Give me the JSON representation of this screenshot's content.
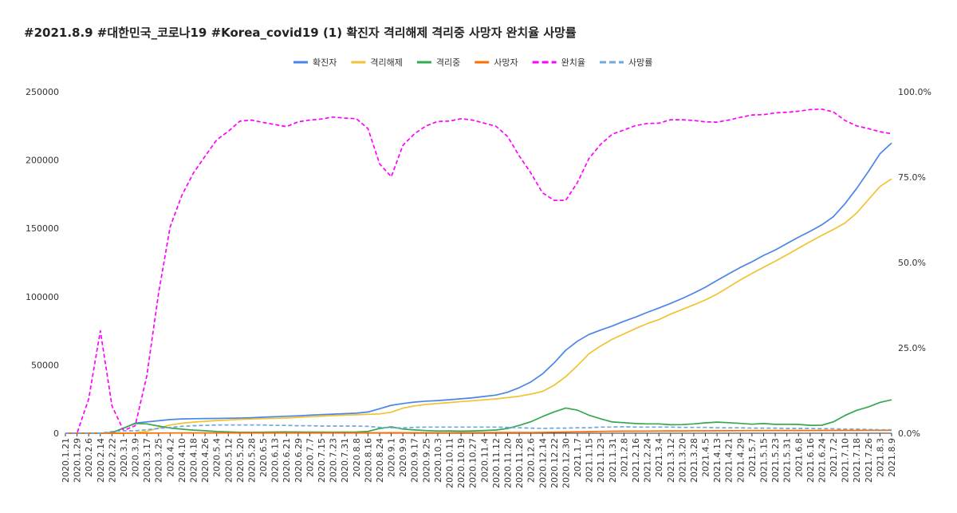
{
  "chart_data": {
    "type": "line",
    "title": "#2021.8.9 #대한민국_코로나19 #Korea_covid19 (1) 확진자 격리해제 격리중 사망자 완치율 사망률",
    "xlabel": "",
    "ylabel": "",
    "ylim": [
      0,
      250000
    ],
    "y2lim": [
      0,
      100
    ],
    "y_ticks": [
      "0",
      "50000",
      "100000",
      "150000",
      "200000",
      "250000"
    ],
    "y2_ticks": [
      "0.0%",
      "25.0%",
      "50.0%",
      "75.0%",
      "100.0%"
    ],
    "legend_position": "top-center",
    "categories": [
      "2020.1.21",
      "2020.1.29",
      "2020.2.6",
      "2020.2.14",
      "2020.2.22",
      "2020.3.1",
      "2020.3.9",
      "2020.3.17",
      "2020.3.25",
      "2020.4.2",
      "2020.4.10",
      "2020.4.18",
      "2020.4.26",
      "2020.5.4",
      "2020.5.12",
      "2020.5.20",
      "2020.5.28",
      "2020.6.5",
      "2020.6.13",
      "2020.6.21",
      "2020.6.29",
      "2020.7.7",
      "2020.7.15",
      "2020.7.23",
      "2020.7.31",
      "2020.8.8",
      "2020.8.16",
      "2020.8.24",
      "2020.9.1",
      "2020.9.9",
      "2020.9.17",
      "2020.9.25",
      "2020.10.3",
      "2020.10.11",
      "2020.10.19",
      "2020.10.27",
      "2020.11.4",
      "2020.11.12",
      "2020.11.20",
      "2020.11.28",
      "2020.12.6",
      "2020.12.14",
      "2020.12.22",
      "2020.12.30",
      "2021.1.7",
      "2021.1.15",
      "2021.1.23",
      "2021.1.31",
      "2021.2.8",
      "2021.2.16",
      "2021.2.24",
      "2021.3.4",
      "2021.3.12",
      "2021.3.20",
      "2021.3.28",
      "2021.4.5",
      "2021.4.13",
      "2021.4.21",
      "2021.4.29",
      "2021.5.7",
      "2021.5.15",
      "2021.5.23",
      "2021.5.31",
      "2021.6.8",
      "2021.6.16",
      "2021.6.24",
      "2021.7.2",
      "2021.7.10",
      "2021.7.18",
      "2021.7.26",
      "2021.8.3",
      "2021.8.9"
    ],
    "series": [
      {
        "name": "확진자",
        "axis": "left",
        "color": "#4a86e8",
        "dash": false,
        "values": [
          1,
          11,
          23,
          28,
          433,
          3736,
          7382,
          8320,
          9137,
          9976,
          10450,
          10653,
          10752,
          10806,
          10962,
          11122,
          11344,
          11719,
          12085,
          12438,
          12757,
          13181,
          13612,
          13938,
          14336,
          14660,
          15515,
          17945,
          20449,
          21743,
          22783,
          23455,
          23889,
          24548,
          25199,
          25955,
          26925,
          27942,
          30017,
          33375,
          37546,
          43484,
          51460,
          60740,
          67358,
          72340,
          75521,
          78508,
          81930,
          85045,
          88516,
          91638,
          95049,
          98665,
          102582,
          106898,
          111851,
          116661,
          121351,
          125519,
          130183,
          134117,
          138898,
          143595,
          147858,
          152545,
          158549,
          168046,
          179203,
          191531,
          204641,
          212448
        ]
      },
      {
        "name": "격리해제",
        "axis": "left",
        "color": "#f1c232",
        "dash": false,
        "values": [
          0,
          0,
          1,
          9,
          18,
          30,
          166,
          1401,
          3730,
          6021,
          7277,
          8114,
          8717,
          9283,
          9695,
          10162,
          10398,
          10669,
          10931,
          11173,
          11629,
          12086,
          12519,
          12905,
          13233,
          13501,
          13845,
          14163,
          15356,
          18319,
          19970,
          21103,
          21815,
          22440,
          23212,
          23790,
          24441,
          25125,
          26098,
          27114,
          28608,
          30611,
          35100,
          41435,
          49450,
          58225,
          63917,
          68790,
          72749,
          76637,
          80262,
          83169,
          87215,
          90567,
          93965,
          97530,
          101894,
          107024,
          112205,
          116963,
          121470,
          125930,
          130611,
          135452,
          140218,
          144848,
          149178,
          153916,
          161190,
          170954,
          180600,
          186300
        ]
      },
      {
        "name": "격리중",
        "axis": "left",
        "color": "#34a853",
        "dash": false,
        "values": [
          1,
          11,
          22,
          19,
          413,
          3680,
          7152,
          6838,
          5281,
          3789,
          2969,
          2306,
          1788,
          1268,
          1006,
          703,
          683,
          772,
          878,
          1004,
          847,
          824,
          792,
          732,
          802,
          855,
          1362,
          3471,
          4702,
          3031,
          2424,
          1935,
          1663,
          1670,
          1491,
          1691,
          1981,
          2309,
          3418,
          5738,
          8420,
          12236,
          15618,
          18432,
          16868,
          13195,
          10574,
          8264,
          7691,
          7052,
          6815,
          6818,
          6179,
          6318,
          6820,
          7571,
          8123,
          7716,
          7185,
          6583,
          7085,
          6501,
          6544,
          6414,
          5811,
          5827,
          8364,
          13022,
          16765,
          19208,
          22562,
          24500
        ]
      },
      {
        "name": "사망자",
        "axis": "left",
        "color": "#ff6d01",
        "dash": false,
        "values": [
          0,
          0,
          0,
          0,
          2,
          26,
          51,
          81,
          126,
          169,
          208,
          232,
          248,
          255,
          262,
          264,
          269,
          276,
          279,
          282,
          283,
          285,
          290,
          292,
          301,
          304,
          309,
          313,
          326,
          358,
          384,
          415,
          422,
          433,
          444,
          457,
          479,
          503,
          517,
          523,
          549,
          612,
          771,
          900,
          1046,
          1170,
          1340,
          1452,
          1521,
          1539,
          1606,
          1652,
          1681,
          1701,
          1734,
          1771,
          1796,
          1821,
          1869,
          1916,
          1945,
          1977,
          1986,
          2004,
          2010,
          2023,
          2024,
          2044,
          2066,
          2080,
          2095,
          2120
        ]
      },
      {
        "name": "완치율",
        "axis": "right",
        "color": "#ff00ff",
        "dash": true,
        "values": [
          0,
          0,
          10,
          30,
          8,
          0.8,
          2.2,
          16.8,
          40.8,
          60.4,
          69.6,
          76.2,
          81.1,
          85.9,
          88.4,
          91.4,
          91.7,
          91.0,
          90.4,
          89.8,
          91.2,
          91.7,
          92.0,
          92.6,
          92.3,
          92.1,
          89.2,
          78.9,
          75.1,
          84.3,
          87.7,
          90.0,
          91.3,
          91.4,
          92.1,
          91.7,
          90.8,
          89.9,
          86.9,
          81.2,
          76.2,
          70.4,
          68.2,
          68.2,
          73.4,
          80.5,
          84.6,
          87.6,
          88.8,
          90.1,
          90.7,
          90.8,
          91.8,
          91.8,
          91.6,
          91.2,
          91.1,
          91.7,
          92.5,
          93.2,
          93.3,
          93.8,
          94.0,
          94.3,
          94.8,
          94.9,
          94.1,
          91.6,
          90.0,
          89.2,
          88.3,
          87.7
        ]
      },
      {
        "name": "사망률",
        "axis": "right",
        "color": "#6fa8dc",
        "dash": true,
        "values": [
          0,
          0,
          0,
          0,
          0.5,
          0.7,
          0.7,
          1.0,
          1.4,
          1.7,
          2.0,
          2.2,
          2.3,
          2.4,
          2.4,
          2.4,
          2.4,
          2.4,
          2.3,
          2.3,
          2.2,
          2.2,
          2.1,
          2.1,
          2.1,
          2.1,
          2.0,
          1.7,
          1.6,
          1.6,
          1.7,
          1.8,
          1.8,
          1.8,
          1.8,
          1.8,
          1.8,
          1.8,
          1.7,
          1.6,
          1.5,
          1.4,
          1.5,
          1.5,
          1.6,
          1.6,
          1.8,
          1.8,
          1.9,
          1.8,
          1.8,
          1.8,
          1.8,
          1.7,
          1.7,
          1.7,
          1.6,
          1.6,
          1.6,
          1.5,
          1.5,
          1.5,
          1.4,
          1.4,
          1.4,
          1.3,
          1.3,
          1.2,
          1.2,
          1.1,
          1.0,
          1.0
        ]
      }
    ]
  }
}
